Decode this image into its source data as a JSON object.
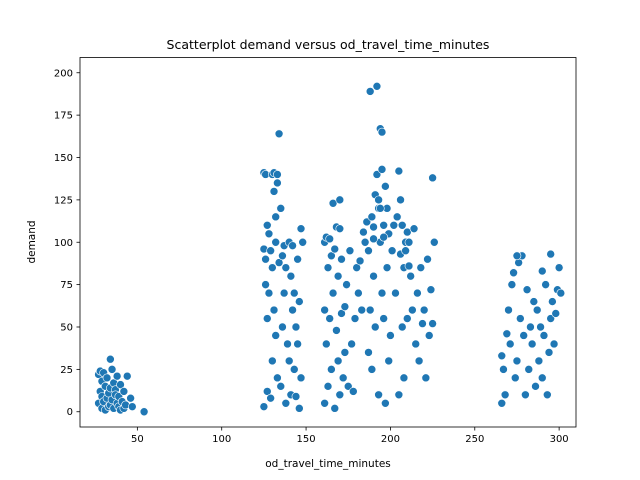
{
  "chart_data": {
    "type": "scatter",
    "title": "Scatterplot demand versus od_travel_time_minutes",
    "xlabel": "od_travel_time_minutes",
    "ylabel": "demand",
    "xlim": [
      16,
      310
    ],
    "ylim": [
      -9,
      209
    ],
    "xticks": [
      50,
      100,
      150,
      200,
      250,
      300
    ],
    "yticks": [
      0,
      25,
      50,
      75,
      100,
      125,
      150,
      175,
      200
    ],
    "grid": false,
    "marker_color": "#1f77b4",
    "marker_edge": "#ffffff",
    "series": [
      {
        "x": [
          27,
          27,
          28,
          28,
          29,
          29,
          29,
          30,
          30,
          31,
          31,
          32,
          32,
          33,
          33,
          34,
          34,
          34,
          35,
          35,
          36,
          36,
          37,
          37,
          38,
          38,
          39,
          39,
          40,
          40,
          41,
          42,
          42,
          43,
          44,
          46,
          47,
          54,
          125,
          125,
          125,
          126,
          126,
          126,
          127,
          127,
          127,
          128,
          128,
          129,
          129,
          130,
          130,
          130,
          131,
          131,
          132,
          132,
          132,
          133,
          133,
          134,
          134,
          135,
          135,
          136,
          136,
          137,
          137,
          138,
          138,
          139,
          140,
          140,
          141,
          141,
          142,
          142,
          143,
          143,
          144,
          144,
          145,
          145,
          146,
          146,
          147,
          147,
          161,
          161,
          161,
          162,
          162,
          163,
          163,
          164,
          164,
          165,
          165,
          166,
          166,
          167,
          167,
          168,
          168,
          169,
          169,
          170,
          170,
          171,
          171,
          172,
          173,
          173,
          174,
          175,
          176,
          177,
          178,
          179,
          180,
          181,
          182,
          183,
          184,
          185,
          186,
          187,
          187,
          188,
          188,
          189,
          189,
          190,
          190,
          191,
          191,
          192,
          192,
          193,
          193,
          194,
          194,
          195,
          195,
          196,
          196,
          197,
          197,
          198,
          198,
          199,
          199,
          200,
          201,
          202,
          203,
          204,
          205,
          206,
          206,
          207,
          207,
          208,
          208,
          209,
          209,
          210,
          210,
          211,
          212,
          213,
          214,
          215,
          216,
          217,
          218,
          219,
          220,
          221,
          222,
          223,
          224,
          225,
          225,
          266,
          266,
          267,
          268,
          269,
          270,
          271,
          272,
          273,
          274,
          275,
          276,
          277,
          278,
          279,
          280,
          281,
          282,
          283,
          284,
          285,
          286,
          287,
          288,
          289,
          290,
          291,
          292,
          293,
          294,
          295,
          296,
          297,
          298,
          299,
          300,
          301,
          131,
          133,
          148,
          170,
          193,
          194,
          195,
          196,
          205,
          211,
          226,
          190,
          275,
          290,
          300,
          295
        ],
        "y": [
          22,
          5,
          24,
          12,
          2,
          18,
          9,
          23,
          6,
          15,
          1,
          20,
          8,
          11,
          3,
          31,
          14,
          4,
          25,
          7,
          17,
          2,
          13,
          10,
          5,
          21,
          9,
          3,
          16,
          1,
          6,
          12,
          2,
          4,
          21,
          8,
          3,
          0,
          141,
          96,
          3,
          90,
          75,
          140,
          110,
          55,
          12,
          105,
          70,
          95,
          8,
          140,
          30,
          85,
          130,
          60,
          100,
          115,
          45,
          20,
          135,
          88,
          164,
          120,
          15,
          92,
          50,
          70,
          98,
          5,
          85,
          40,
          100,
          30,
          10,
          80,
          60,
          98,
          25,
          70,
          50,
          9,
          90,
          40,
          65,
          2,
          108,
          20,
          100,
          60,
          5,
          103,
          40,
          85,
          15,
          102,
          55,
          92,
          25,
          70,
          123,
          2,
          96,
          48,
          109,
          30,
          80,
          10,
          108,
          58,
          90,
          20,
          62,
          35,
          75,
          15,
          95,
          40,
          12,
          55,
          85,
          70,
          89,
          60,
          106,
          100,
          112,
          35,
          95,
          189,
          60,
          115,
          25,
          109,
          80,
          128,
          50,
          192,
          140,
          10,
          120,
          167,
          100,
          143,
          70,
          110,
          55,
          133,
          5,
          120,
          85,
          105,
          30,
          45,
          95,
          110,
          70,
          115,
          10,
          93,
          125,
          50,
          110,
          85,
          20,
          100,
          95,
          55,
          106,
          100,
          80,
          60,
          108,
          40,
          70,
          30,
          85,
          52,
          60,
          20,
          90,
          45,
          72,
          138,
          52,
          33,
          5,
          25,
          10,
          46,
          60,
          40,
          75,
          82,
          20,
          30,
          88,
          55,
          92,
          45,
          10,
          72,
          25,
          50,
          40,
          65,
          15,
          60,
          30,
          50,
          20,
          45,
          75,
          10,
          35,
          55,
          65,
          40,
          58,
          72,
          85,
          70,
          141,
          140,
          100,
          125,
          125,
          120,
          165,
          103,
          142,
          86,
          100,
          102,
          92,
          83,
          85,
          93
        ]
      }
    ]
  }
}
